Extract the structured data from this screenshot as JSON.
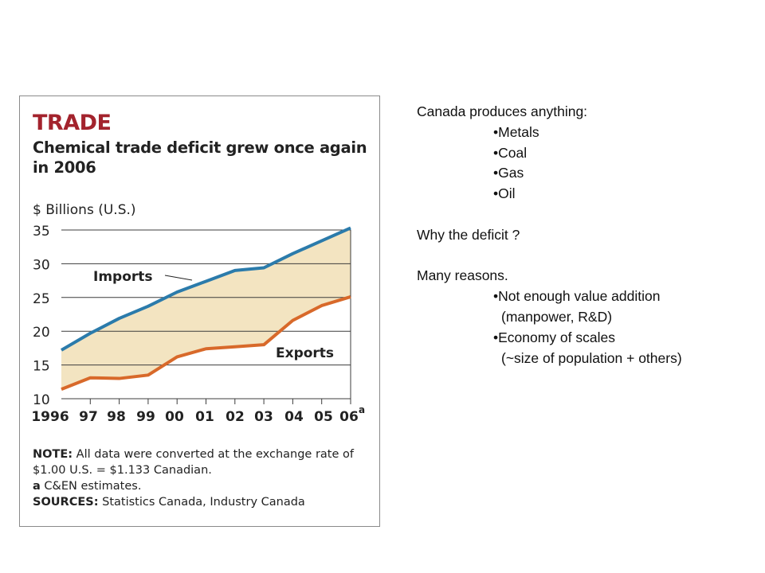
{
  "figure": {
    "kicker": "TRADE",
    "title": "Chemical trade deficit grew once again in 2006",
    "notes": {
      "note_label": "NOTE:",
      "note_text": "All data were converted at the exchange rate of $1.00 U.S. = $1.133 Canadian.",
      "estimate_marker": "a",
      "estimate_text": "C&EN estimates.",
      "sources_label": "SOURCES:",
      "sources_text": "Statistics Canada, Industry Canada"
    }
  },
  "chart_data": {
    "type": "area",
    "title": "Chemical trade deficit grew once again in 2006",
    "ylabel": "$ Billions (U.S.)",
    "xlabel": "",
    "ylim": [
      10,
      35
    ],
    "yticks": [
      10,
      15,
      20,
      25,
      30,
      35
    ],
    "categories": [
      "1996",
      "97",
      "98",
      "99",
      "00",
      "01",
      "02",
      "03",
      "04",
      "05",
      "06"
    ],
    "estimate_marker": "a",
    "series": [
      {
        "name": "Imports",
        "color": "#2b7bab",
        "values": [
          17.2,
          19.7,
          21.9,
          23.7,
          25.8,
          27.4,
          29.0,
          29.4,
          31.5,
          33.4,
          35.3
        ]
      },
      {
        "name": "Exports",
        "color": "#d8692a",
        "values": [
          11.4,
          13.1,
          13.0,
          13.5,
          16.2,
          17.4,
          17.7,
          18.0,
          21.6,
          23.8,
          25.1
        ]
      }
    ],
    "fill_color": "#f3e4c1",
    "grid": true
  },
  "text_panel": {
    "heading": "Canada produces anything:",
    "resources": [
      "•Metals",
      "•Coal",
      "•Gas",
      "•Oil"
    ],
    "question": "Why the deficit ?",
    "answer_intro": "Many reasons.",
    "reasons": [
      {
        "point": "•Not enough value addition",
        "detail": "(manpower, R&D)"
      },
      {
        "point": "•Economy of scales",
        "detail": "(~size of population + others)"
      }
    ]
  }
}
